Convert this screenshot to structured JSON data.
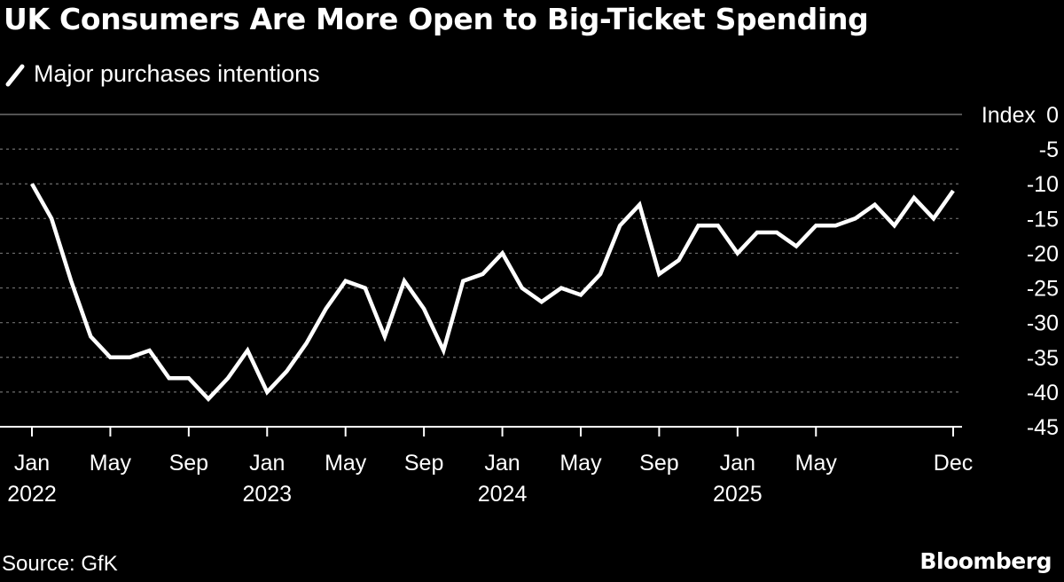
{
  "chart_data": {
    "type": "line",
    "title": "UK Consumers Are More Open to Big-Ticket Spending",
    "series": [
      {
        "name": "Major purchases intentions",
        "color": "#ffffff",
        "values": [
          -10,
          -15,
          -24,
          -32,
          -35,
          -35,
          -34,
          -38,
          -38,
          -41,
          -38,
          -34,
          -40,
          -37,
          -33,
          -28,
          -24,
          -25,
          -32,
          -24,
          -28,
          -34,
          -24,
          -23,
          -20,
          -25,
          -27,
          -25,
          -26,
          -23,
          -16,
          -13,
          -23,
          -21,
          -16,
          -16,
          -20,
          -17,
          -17,
          -19,
          -16,
          -16,
          -15,
          -13,
          -16,
          -12,
          -15,
          -11
        ]
      }
    ],
    "ylabel": "Index",
    "ylim": [
      -45,
      0
    ],
    "yticks": [
      0,
      -5,
      -10,
      -15,
      -20,
      -25,
      -30,
      -35,
      -40,
      -45
    ],
    "ytick_labels": [
      "0",
      "-5",
      "-10",
      "-15",
      "-20",
      "-25",
      "-30",
      "-35",
      "-40",
      "-45"
    ],
    "x_start": "Jan 2022",
    "x_end": "Dec 2025",
    "xticks": [
      {
        "index": 0,
        "month": "Jan",
        "year": "2022"
      },
      {
        "index": 4,
        "month": "May",
        "year": ""
      },
      {
        "index": 8,
        "month": "Sep",
        "year": ""
      },
      {
        "index": 12,
        "month": "Jan",
        "year": "2023"
      },
      {
        "index": 16,
        "month": "May",
        "year": ""
      },
      {
        "index": 20,
        "month": "Sep",
        "year": ""
      },
      {
        "index": 24,
        "month": "Jan",
        "year": "2024"
      },
      {
        "index": 28,
        "month": "May",
        "year": ""
      },
      {
        "index": 32,
        "month": "Sep",
        "year": ""
      },
      {
        "index": 36,
        "month": "Jan",
        "year": "2025"
      },
      {
        "index": 40,
        "month": "May",
        "year": ""
      },
      {
        "index": 47,
        "month": "Dec",
        "year": ""
      }
    ],
    "grid": true,
    "legend_position": "top-left"
  },
  "header": {
    "title": "UK Consumers Are More Open to Big-Ticket Spending",
    "legend_label": "Major purchases intentions"
  },
  "footer": {
    "source": "Source: GfK",
    "brand": "Bloomberg"
  },
  "colors": {
    "background": "#000000",
    "line": "#ffffff",
    "grid": "#6e6e6e",
    "axis": "#ffffff"
  }
}
